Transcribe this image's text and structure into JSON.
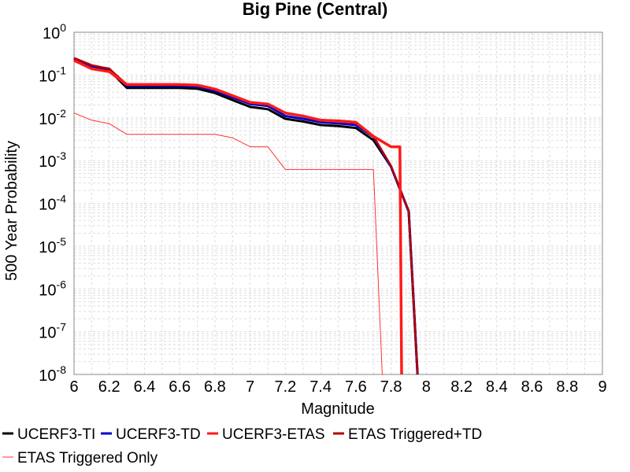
{
  "chart_data": {
    "type": "line",
    "title": "Big Pine (Central)",
    "xlabel": "Magnitude",
    "ylabel": "500 Year Probability",
    "xlim": [
      6,
      9
    ],
    "ylim": [
      1e-08,
      1
    ],
    "yscale": "log",
    "grid": true,
    "legend_position": "bottom",
    "x_ticks": [
      "6",
      "6.2",
      "6.4",
      "6.6",
      "6.8",
      "7",
      "7.2",
      "7.4",
      "7.6",
      "7.8",
      "8",
      "8.2",
      "8.4",
      "8.6",
      "8.8",
      "9"
    ],
    "y_ticks": [
      {
        "base": "10",
        "exp": "0"
      },
      {
        "base": "10",
        "exp": "-1"
      },
      {
        "base": "10",
        "exp": "-2"
      },
      {
        "base": "10",
        "exp": "-3"
      },
      {
        "base": "10",
        "exp": "-4"
      },
      {
        "base": "10",
        "exp": "-5"
      },
      {
        "base": "10",
        "exp": "-6"
      },
      {
        "base": "10",
        "exp": "-7"
      },
      {
        "base": "10",
        "exp": "-8"
      }
    ],
    "series": [
      {
        "name": "UCERF3-TI",
        "color": "#000000",
        "x": [
          6.0,
          6.1,
          6.2,
          6.3,
          6.4,
          6.5,
          6.6,
          6.7,
          6.8,
          6.9,
          7.0,
          7.1,
          7.2,
          7.3,
          7.4,
          7.5,
          7.6,
          7.7,
          7.8,
          7.9,
          7.95
        ],
        "y": [
          0.24,
          0.16,
          0.13,
          0.05,
          0.05,
          0.05,
          0.05,
          0.048,
          0.038,
          0.026,
          0.018,
          0.016,
          0.0095,
          0.0082,
          0.0068,
          0.0064,
          0.0058,
          0.003,
          0.00072,
          6.5e-05,
          1e-08
        ]
      },
      {
        "name": "UCERF3-TD",
        "color": "#0000cc",
        "x": [
          6.0,
          6.1,
          6.2,
          6.3,
          6.4,
          6.5,
          6.6,
          6.7,
          6.8,
          6.9,
          7.0,
          7.1,
          7.2,
          7.3,
          7.4,
          7.5,
          7.6,
          7.7,
          7.8,
          7.9,
          7.95
        ],
        "y": [
          0.24,
          0.16,
          0.14,
          0.056,
          0.056,
          0.056,
          0.056,
          0.054,
          0.043,
          0.03,
          0.021,
          0.019,
          0.011,
          0.0095,
          0.0079,
          0.0074,
          0.0068,
          0.0036,
          0.00072,
          6.5e-05,
          1e-08
        ]
      },
      {
        "name": "UCERF3-ETAS",
        "color": "#ff1a1a",
        "x": [
          6.0,
          6.1,
          6.2,
          6.3,
          6.4,
          6.5,
          6.6,
          6.7,
          6.8,
          6.9,
          7.0,
          7.1,
          7.2,
          7.3,
          7.4,
          7.5,
          7.6,
          7.7,
          7.8,
          7.85,
          7.86
        ],
        "y": [
          0.22,
          0.14,
          0.12,
          0.06,
          0.06,
          0.06,
          0.06,
          0.058,
          0.047,
          0.033,
          0.023,
          0.021,
          0.013,
          0.011,
          0.0088,
          0.0083,
          0.0078,
          0.0037,
          0.0021,
          0.0021,
          1e-08
        ]
      },
      {
        "name": "ETAS Triggered+TD",
        "color": "#b30000",
        "x": [
          6.0,
          6.1,
          6.2,
          6.3,
          6.4,
          6.5,
          6.6,
          6.7,
          6.8,
          6.9,
          7.0,
          7.1,
          7.2,
          7.3,
          7.4,
          7.5,
          7.6,
          7.7,
          7.8,
          7.9,
          7.95
        ],
        "y": [
          0.25,
          0.17,
          0.14,
          0.06,
          0.06,
          0.06,
          0.06,
          0.058,
          0.047,
          0.033,
          0.023,
          0.021,
          0.013,
          0.011,
          0.009,
          0.0086,
          0.008,
          0.0037,
          0.00075,
          6.5e-05,
          1e-08
        ]
      },
      {
        "name": "ETAS Triggered Only",
        "color": "#ff3333",
        "x": [
          6.0,
          6.1,
          6.2,
          6.3,
          6.4,
          6.5,
          6.6,
          6.7,
          6.8,
          6.9,
          7.0,
          7.1,
          7.2,
          7.3,
          7.4,
          7.5,
          7.6,
          7.7,
          7.75,
          7.76
        ],
        "y": [
          0.013,
          0.0088,
          0.0073,
          0.0041,
          0.0041,
          0.0041,
          0.0041,
          0.0041,
          0.0041,
          0.0034,
          0.0021,
          0.0021,
          0.00062,
          0.00062,
          0.00062,
          0.00062,
          0.00062,
          0.00062,
          1e-08,
          1e-08
        ]
      }
    ]
  }
}
